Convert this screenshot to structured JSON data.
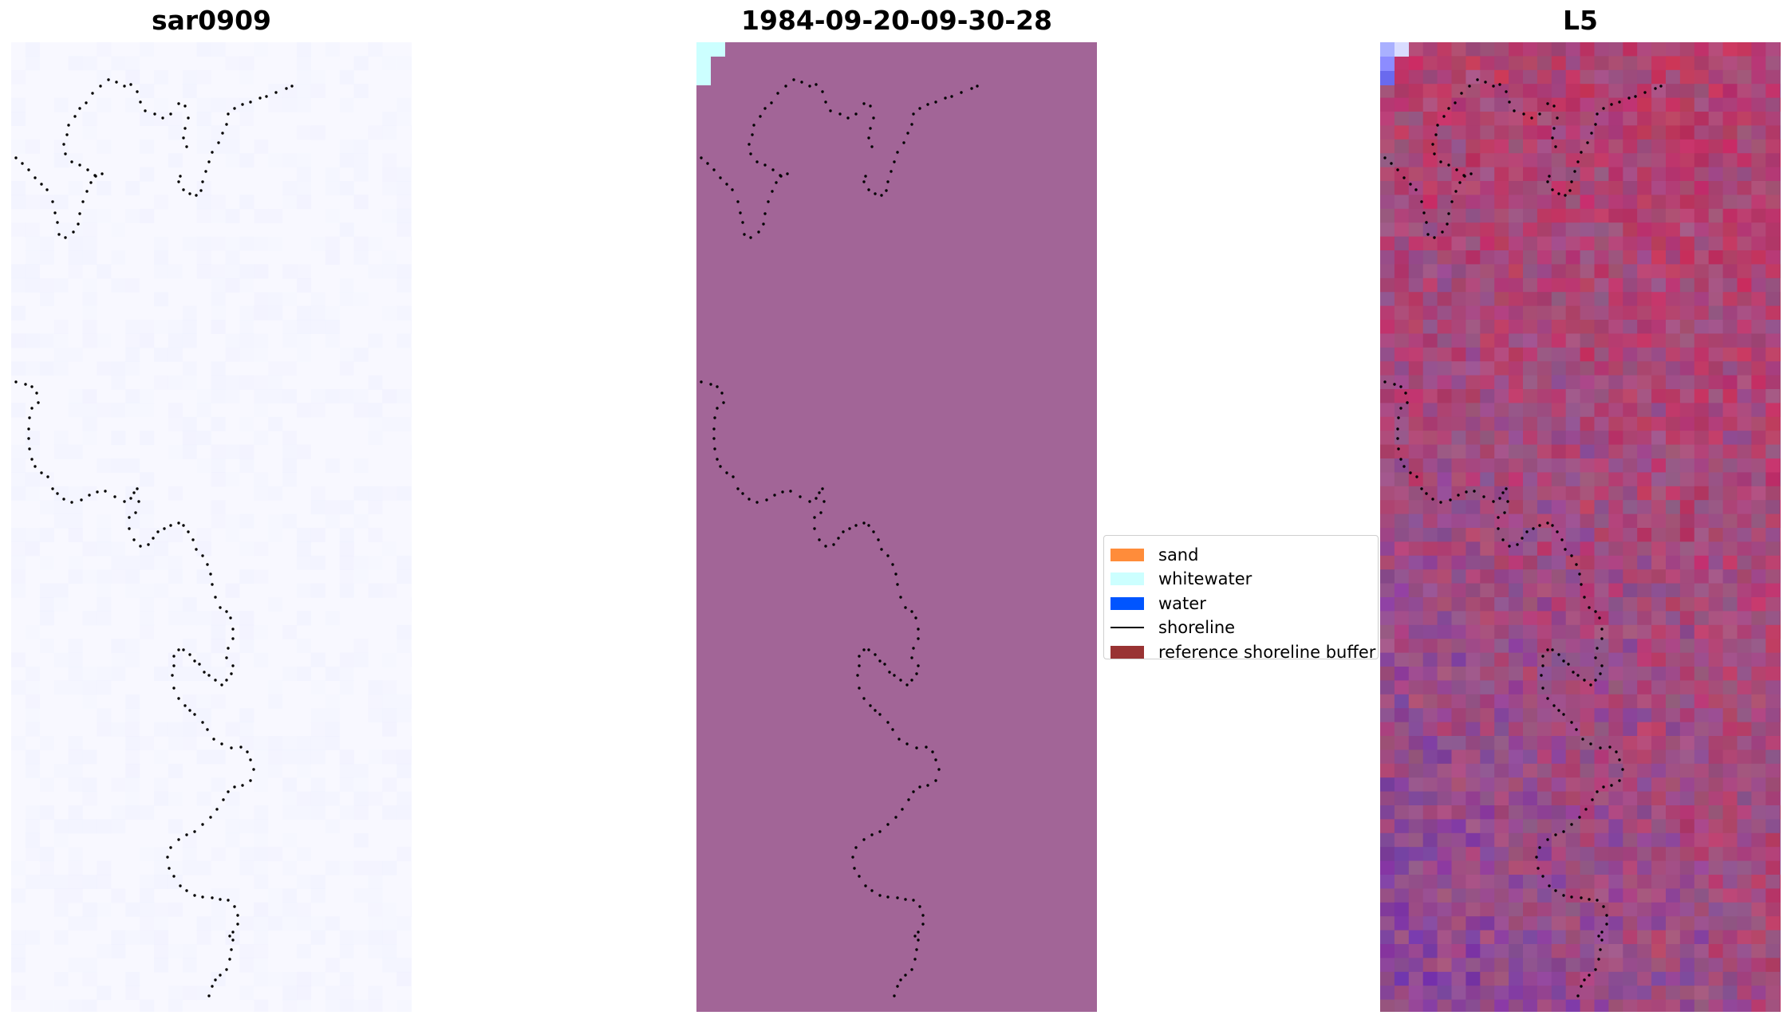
{
  "panels": [
    {
      "title": "sar0909"
    },
    {
      "title": "1984-09-20-09-30-28"
    },
    {
      "title": "L5"
    }
  ],
  "legend": {
    "items": [
      {
        "label": "sand",
        "color": "#ff8c3a",
        "kind": "patch"
      },
      {
        "label": "whitewater",
        "color": "#ccffff",
        "kind": "patch"
      },
      {
        "label": "water",
        "color": "#0055ff",
        "kind": "patch"
      },
      {
        "label": "shoreline",
        "color": "#000000",
        "kind": "line"
      },
      {
        "label": "reference shoreline buffer",
        "color": "#993333",
        "kind": "patch"
      }
    ]
  },
  "colors": {
    "classification_background": "#a26597",
    "whitewater": "#ccffff",
    "sar_background": "#f8f8ff",
    "shoreline": "#000000"
  }
}
